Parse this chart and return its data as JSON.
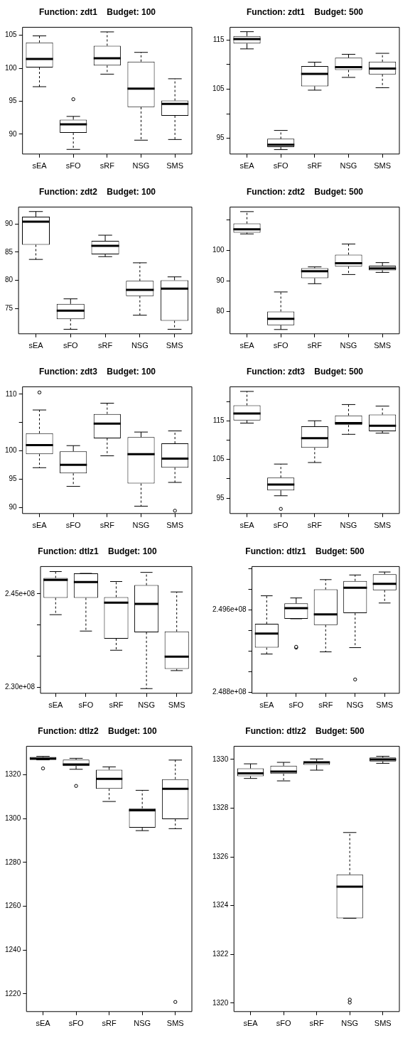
{
  "chart_data": [
    {
      "type": "box",
      "title": "Function: zdt1    Budget: 100",
      "categories": [
        "sEA",
        "sFO",
        "sRF",
        "NSG",
        "SMS"
      ],
      "ylim": [
        87.0,
        106.2
      ],
      "yticks": [
        90,
        95,
        100,
        105
      ],
      "boxes": [
        {
          "low": 97.2,
          "q1": 100.1,
          "median": 101.4,
          "q3": 103.9,
          "high": 104.9
        },
        {
          "low": 87.7,
          "q1": 90.2,
          "median": 91.5,
          "q3": 92.2,
          "high": 92.7,
          "outliers": [
            95.3
          ]
        },
        {
          "low": 99.1,
          "q1": 100.4,
          "median": 101.5,
          "q3": 103.4,
          "high": 105.5
        },
        {
          "low": 89.1,
          "q1": 94.1,
          "median": 96.9,
          "q3": 101.0,
          "high": 102.4
        },
        {
          "low": 89.2,
          "q1": 92.8,
          "median": 94.6,
          "q3": 95.1,
          "high": 98.4
        }
      ]
    },
    {
      "type": "box",
      "title": "Function: zdt1    Budget: 500",
      "categories": [
        "sEA",
        "sFO",
        "sRF",
        "NSG",
        "SMS"
      ],
      "ylim": [
        91.8,
        117.6
      ],
      "yticks": [
        95,
        {
          "value": 100,
          "label": null
        },
        105,
        {
          "value": 110,
          "label": null
        },
        115
      ],
      "boxes": [
        {
          "low": 113.2,
          "q1": 114.3,
          "median": 115.2,
          "q3": 115.8,
          "high": 116.7
        },
        {
          "low": 92.7,
          "q1": 93.2,
          "median": 93.7,
          "q3": 94.9,
          "high": 96.6
        },
        {
          "low": 104.8,
          "q1": 105.6,
          "median": 108.1,
          "q3": 109.7,
          "high": 110.5
        },
        {
          "low": 107.4,
          "q1": 108.9,
          "median": 109.5,
          "q3": 111.4,
          "high": 112.1
        },
        {
          "low": 105.3,
          "q1": 108.0,
          "median": 109.2,
          "q3": 110.6,
          "high": 112.3
        }
      ]
    },
    {
      "type": "box",
      "title": "Function: zdt2    Budget: 100",
      "categories": [
        "sEA",
        "sFO",
        "sRF",
        "NSG",
        "SMS"
      ],
      "ylim": [
        70.5,
        93.0
      ],
      "yticks": [
        75,
        80,
        85,
        90
      ],
      "boxes": [
        {
          "low": 83.7,
          "q1": 86.3,
          "median": 90.4,
          "q3": 91.3,
          "high": 92.2
        },
        {
          "low": 71.3,
          "q1": 73.1,
          "median": 74.6,
          "q3": 75.8,
          "high": 76.7
        },
        {
          "low": 84.2,
          "q1": 84.6,
          "median": 86.1,
          "q3": 87.0,
          "high": 88.0
        },
        {
          "low": 73.8,
          "q1": 77.2,
          "median": 78.3,
          "q3": 79.9,
          "high": 83.1
        },
        {
          "low": 71.3,
          "q1": 72.8,
          "median": 78.5,
          "q3": 80.0,
          "high": 80.6
        }
      ]
    },
    {
      "type": "box",
      "title": "Function: zdt2    Budget: 500",
      "categories": [
        "sEA",
        "sFO",
        "sRF",
        "NSG",
        "SMS"
      ],
      "ylim": [
        72.7,
        114.2
      ],
      "yticks": [
        80,
        90,
        100,
        {
          "value": 110,
          "label": null
        }
      ],
      "boxes": [
        {
          "low": 105.4,
          "q1": 105.8,
          "median": 106.9,
          "q3": 108.8,
          "high": 112.7
        },
        {
          "low": 74.1,
          "q1": 75.5,
          "median": 77.6,
          "q3": 80.0,
          "high": 86.4
        },
        {
          "low": 89.1,
          "q1": 90.9,
          "median": 93.2,
          "q3": 94.2,
          "high": 94.6
        },
        {
          "low": 92.1,
          "q1": 94.7,
          "median": 95.8,
          "q3": 98.6,
          "high": 102.1
        },
        {
          "low": 92.8,
          "q1": 93.5,
          "median": 94.1,
          "q3": 95.0,
          "high": 96.0
        }
      ]
    },
    {
      "type": "box",
      "title": "Function: zdt3    Budget: 100",
      "categories": [
        "sEA",
        "sFO",
        "sRF",
        "NSG",
        "SMS"
      ],
      "ylim": [
        88.9,
        111.3
      ],
      "yticks": [
        90,
        95,
        100,
        {
          "value": 105,
          "label": null
        },
        110
      ],
      "boxes": [
        {
          "low": 97.0,
          "q1": 99.4,
          "median": 101.0,
          "q3": 103.1,
          "high": 107.2,
          "outliers": [
            110.3
          ]
        },
        {
          "low": 93.7,
          "q1": 96.0,
          "median": 97.5,
          "q3": 99.9,
          "high": 100.9
        },
        {
          "low": 99.1,
          "q1": 102.2,
          "median": 104.8,
          "q3": 106.5,
          "high": 108.4
        },
        {
          "low": 90.2,
          "q1": 94.2,
          "median": 99.4,
          "q3": 102.4,
          "high": 103.3
        },
        {
          "low": 94.4,
          "q1": 97.0,
          "median": 98.6,
          "q3": 101.3,
          "high": 103.5,
          "outliers": [
            89.4
          ]
        }
      ]
    },
    {
      "type": "box",
      "title": "Function: zdt3    Budget: 500",
      "categories": [
        "sEA",
        "sFO",
        "sRF",
        "NSG",
        "SMS"
      ],
      "ylim": [
        91.0,
        123.8
      ],
      "yticks": [
        95,
        {
          "value": 100,
          "label": null
        },
        105,
        {
          "value": 110,
          "label": null
        },
        115,
        {
          "value": 120,
          "label": null
        }
      ],
      "boxes": [
        {
          "low": 114.4,
          "q1": 115.1,
          "median": 116.9,
          "q3": 119.0,
          "high": 122.6
        },
        {
          "low": 95.6,
          "q1": 97.0,
          "median": 98.5,
          "q3": 100.3,
          "high": 103.8,
          "outliers": [
            92.2
          ]
        },
        {
          "low": 104.2,
          "q1": 108.0,
          "median": 110.5,
          "q3": 113.6,
          "high": 115.0
        },
        {
          "low": 111.5,
          "q1": 113.9,
          "median": 114.4,
          "q3": 116.4,
          "high": 119.2
        },
        {
          "low": 111.8,
          "q1": 112.3,
          "median": 113.7,
          "q3": 116.6,
          "high": 118.8
        }
      ]
    },
    {
      "type": "box",
      "title": "Function: dtlz1    Budget: 100",
      "categories": [
        "sEA",
        "sFO",
        "sRF",
        "NSG",
        "SMS"
      ],
      "ylim": [
        229050000,
        249400000
      ],
      "yticks": [
        {
          "value": 230000000,
          "label": "2.30e+08"
        },
        {
          "value": 235000000,
          "label": null
        },
        {
          "value": 240000000,
          "label": null
        },
        {
          "value": 245000000,
          "label": "2.45e+08"
        }
      ],
      "boxes": [
        {
          "low": 241670000,
          "q1": 244360000,
          "median": 247240000,
          "q3": 247560000,
          "high": 248590000
        },
        {
          "low": 239040000,
          "q1": 244360000,
          "median": 246920000,
          "q3": 248300000,
          "high": 248300000
        },
        {
          "low": 235960000,
          "q1": 237820000,
          "median": 243590000,
          "q3": 244490000,
          "high": 246990000
        },
        {
          "low": 229800000,
          "q1": 238850000,
          "median": 243400000,
          "q3": 246410000,
          "high": 248460000
        },
        {
          "low": 232690000,
          "q1": 232950000,
          "median": 234940000,
          "q3": 238970000,
          "high": 245320000
        }
      ]
    },
    {
      "type": "box",
      "title": "Function: dtlz1    Budget: 500",
      "categories": [
        "sEA",
        "sFO",
        "sRF",
        "NSG",
        "SMS"
      ],
      "ylim": [
        248790000,
        250020000
      ],
      "yticks": [
        {
          "value": 248800000,
          "label": "2.488e+08"
        },
        {
          "value": 249000000,
          "label": null
        },
        {
          "value": 249200000,
          "label": null
        },
        {
          "value": 249400000,
          "label": null
        },
        {
          "value": 249600000,
          "label": "2.496e+08"
        },
        {
          "value": 249800000,
          "label": null
        },
        {
          "value": 250000000,
          "label": null
        }
      ],
      "boxes": [
        {
          "low": 249171000,
          "q1": 249233000,
          "median": 249369000,
          "q3": 249464000,
          "high": 249736000
        },
        {
          "low": 249513000,
          "q1": 249513000,
          "median": 249616000,
          "q3": 249662000,
          "high": 249715000,
          "outliers": [
            249241000,
            249233000
          ]
        },
        {
          "low": 249192000,
          "q1": 249452000,
          "median": 249555000,
          "q3": 249798000,
          "high": 249893000
        },
        {
          "low": 249233000,
          "q1": 249567000,
          "median": 249814000,
          "q3": 249880000,
          "high": 249938000,
          "outliers": [
            248924000
          ]
        },
        {
          "low": 249666000,
          "q1": 249790000,
          "median": 249852000,
          "q3": 249946000,
          "high": 249967000
        }
      ]
    },
    {
      "type": "box",
      "title": "Function: dtlz2    Budget: 100",
      "categories": [
        "sEA",
        "sFO",
        "sRF",
        "NSG",
        "SMS"
      ],
      "ylim": [
        1211.9,
        1333.0
      ],
      "yticks": [
        1220,
        1240,
        1260,
        1280,
        1300,
        1320
      ],
      "boxes": [
        {
          "low": 1326.8,
          "q1": 1326.8,
          "median": 1327.4,
          "q3": 1328.1,
          "high": 1328.4,
          "outliers": [
            1322.9
          ]
        },
        {
          "low": 1322.5,
          "q1": 1324.0,
          "median": 1324.7,
          "q3": 1326.9,
          "high": 1327.5,
          "outliers": [
            1314.9
          ]
        },
        {
          "low": 1307.8,
          "q1": 1313.6,
          "median": 1318.1,
          "q3": 1322.3,
          "high": 1323.6
        },
        {
          "low": 1294.5,
          "q1": 1295.8,
          "median": 1303.8,
          "q3": 1304.7,
          "high": 1312.9
        },
        {
          "low": 1295.4,
          "q1": 1299.7,
          "median": 1313.6,
          "q3": 1318.0,
          "high": 1326.7,
          "outliers": [
            1216.3
          ]
        }
      ]
    },
    {
      "type": "box",
      "title": "Function: dtlz2    Budget: 500",
      "categories": [
        "sEA",
        "sFO",
        "sRF",
        "NSG",
        "SMS"
      ],
      "ylim": [
        1319.65,
        1330.54
      ],
      "yticks": [
        1320,
        1322,
        1324,
        1326,
        1328,
        1330
      ],
      "boxes": [
        {
          "low": 1329.22,
          "q1": 1329.31,
          "median": 1329.43,
          "q3": 1329.63,
          "high": 1329.82
        },
        {
          "low": 1329.12,
          "q1": 1329.41,
          "median": 1329.5,
          "q3": 1329.74,
          "high": 1329.88
        },
        {
          "low": 1329.56,
          "q1": 1329.78,
          "median": 1329.88,
          "q3": 1329.92,
          "high": 1330.02
        },
        {
          "low": 1323.48,
          "q1": 1323.48,
          "median": 1324.78,
          "q3": 1325.28,
          "high": 1327.0,
          "outliers": [
            1320.14,
            1320.02
          ]
        },
        {
          "low": 1329.84,
          "q1": 1329.92,
          "median": 1330.0,
          "q3": 1330.08,
          "high": 1330.13
        }
      ]
    }
  ]
}
